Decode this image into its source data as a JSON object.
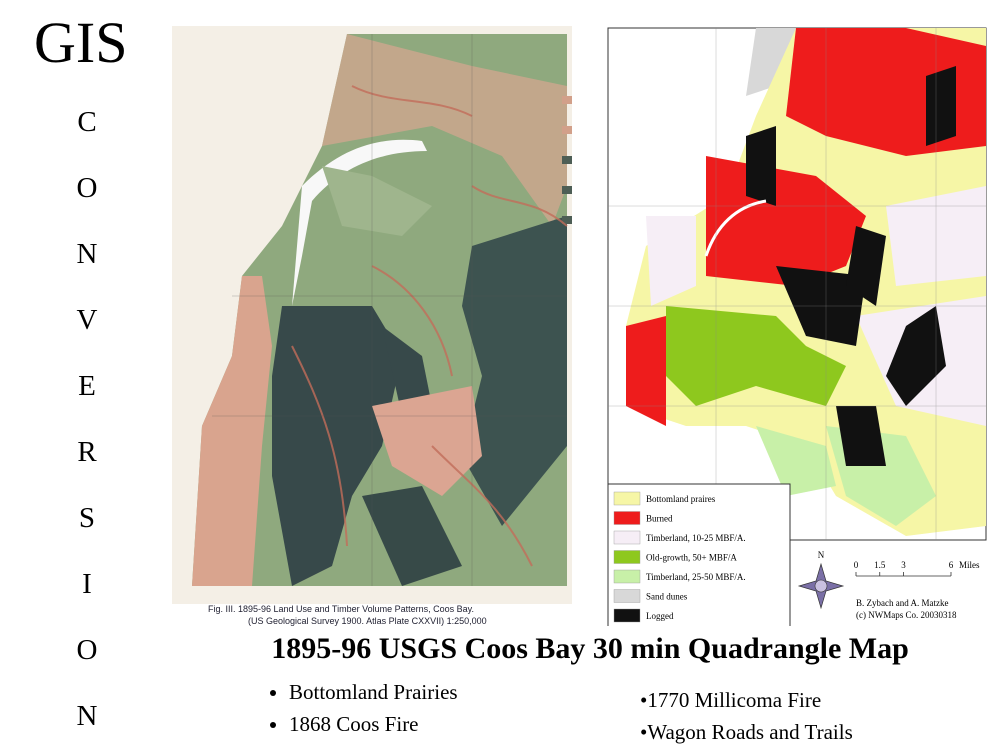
{
  "title": "GIS",
  "side_title": "CONVERSION",
  "left_map": {
    "caption_line1": "Fig. III.   1895-96 Land Use and Timber Volume Patterns, Coos Bay.",
    "caption_line2": "(US Geological Survey 1900. Atlas Plate CXXVII)   1:250,000"
  },
  "right_map": {
    "legend": [
      {
        "label": "Bottomland praires",
        "color": "#f6f6a6"
      },
      {
        "label": "Burned",
        "color": "#ee1c1c"
      },
      {
        "label": "Timberland, 10-25 MBF/A.",
        "color": "#f6eef6"
      },
      {
        "label": "Old-growth, 50+ MBF/A",
        "color": "#8ec81e"
      },
      {
        "label": "Timberland, 25-50 MBF/A.",
        "color": "#c8f0a8"
      },
      {
        "label": "Sand dunes",
        "color": "#d8d8d8"
      },
      {
        "label": "Logged",
        "color": "#111111"
      }
    ],
    "north": "N",
    "scale": {
      "ticks": [
        0,
        1.5,
        3,
        6
      ],
      "unit": "Miles"
    },
    "credit_line1": "B. Zybach and A. Matzke",
    "credit_line2": "(c) NWMaps Co. 20030318"
  },
  "heading": "1895-96 USGS Coos Bay 30 min Quadrangle Map",
  "bullets_left": [
    "Bottomland Prairies",
    "1868 Coos Fire"
  ],
  "bullets_right": [
    "•1770 Millicoma Fire",
    "•Wagon Roads and Trails"
  ]
}
